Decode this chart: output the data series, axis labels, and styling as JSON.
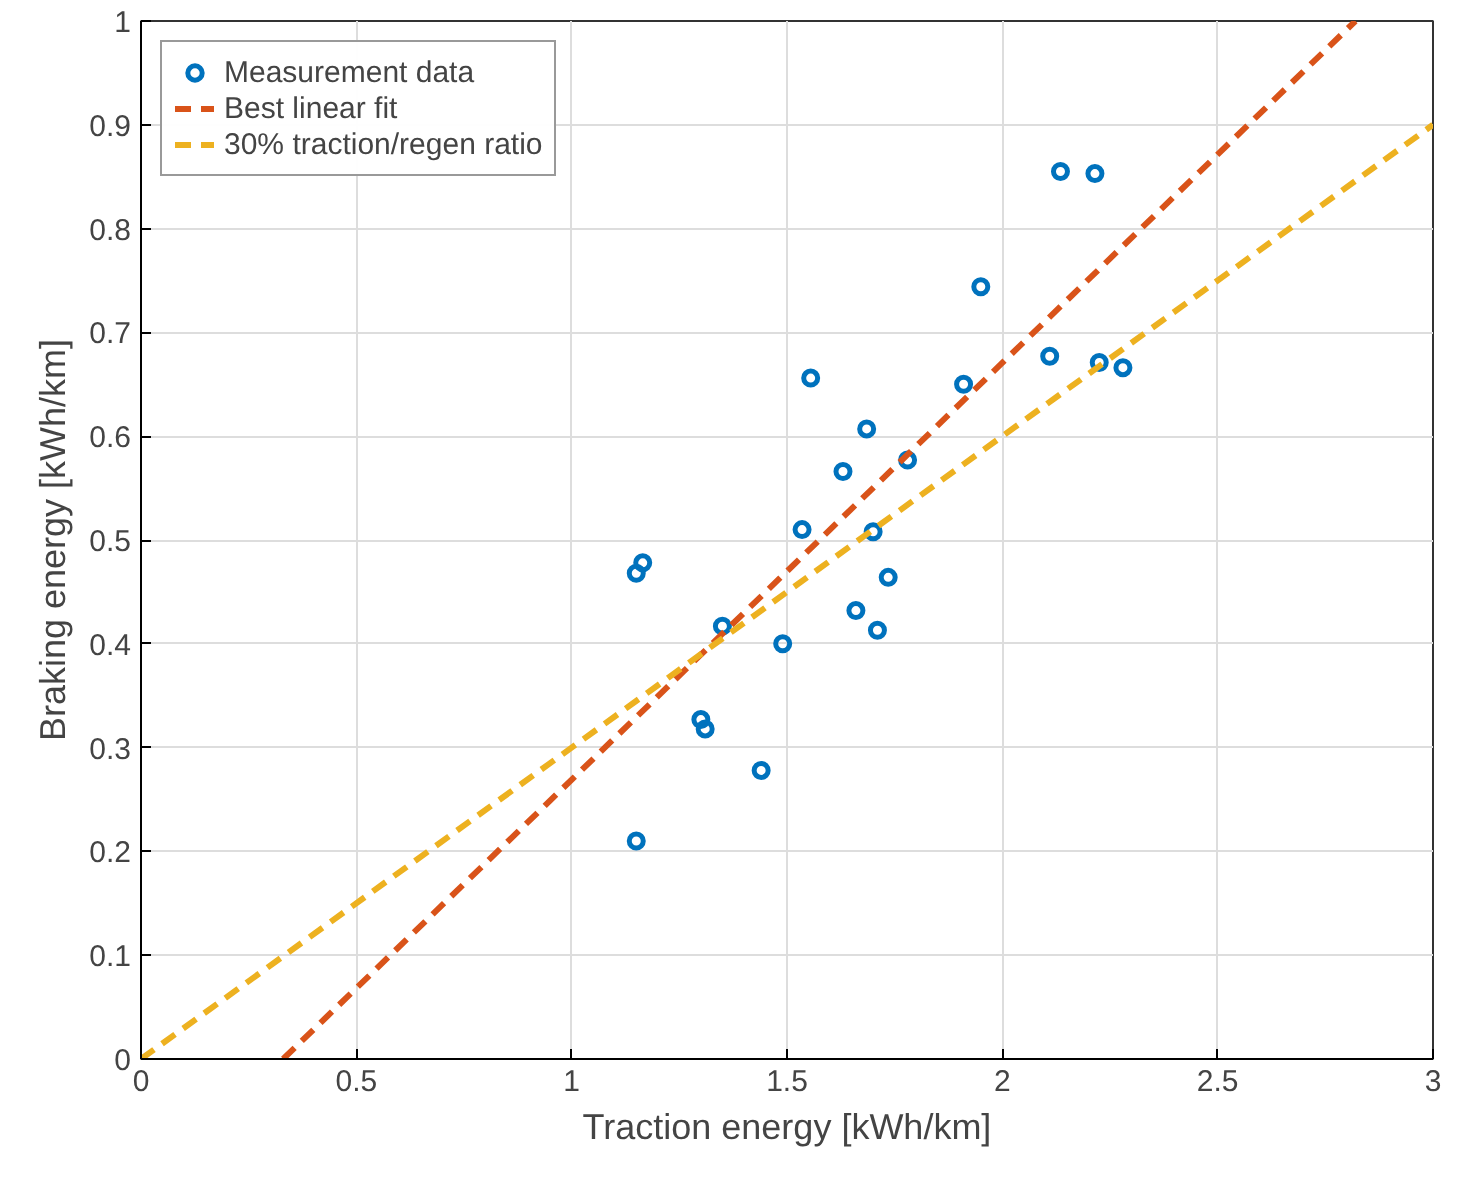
{
  "chart_data": {
    "type": "scatter",
    "xlabel": "Traction energy [kWh/km]",
    "ylabel": "Braking energy [kWh/km]",
    "xlim": [
      0,
      3
    ],
    "ylim": [
      0,
      1
    ],
    "xticks": [
      0,
      0.5,
      1,
      1.5,
      2,
      2.5,
      3
    ],
    "yticks": [
      0,
      0.1,
      0.2,
      0.3,
      0.4,
      0.5,
      0.6,
      0.7,
      0.8,
      0.9,
      1
    ],
    "grid": true,
    "legend": "top left",
    "series": [
      {
        "name": "Measurement data",
        "marker": "circle",
        "color": "#0072bd",
        "x": [
          1.15,
          1.15,
          1.165,
          1.3,
          1.31,
          1.35,
          1.44,
          1.49,
          1.535,
          1.555,
          1.63,
          1.66,
          1.685,
          1.7,
          1.71,
          1.735,
          1.78,
          1.91,
          1.95,
          2.11,
          2.135,
          2.215,
          2.225,
          2.28
        ],
        "values": [
          0.21,
          0.468,
          0.478,
          0.327,
          0.318,
          0.417,
          0.278,
          0.4,
          0.51,
          0.656,
          0.566,
          0.432,
          0.607,
          0.508,
          0.413,
          0.464,
          0.577,
          0.65,
          0.744,
          0.677,
          0.855,
          0.853,
          0.671,
          0.666
        ]
      },
      {
        "name": "Best linear fit",
        "type": "line",
        "line_style": "dashed",
        "color": "#d95319",
        "x": [
          0.33,
          2.82
        ],
        "values": [
          0,
          1
        ]
      },
      {
        "name": "30% traction/regen ratio",
        "type": "line",
        "line_style": "dashed",
        "color": "#edb120",
        "x": [
          0,
          3
        ],
        "values": [
          0,
          0.9
        ]
      }
    ]
  }
}
